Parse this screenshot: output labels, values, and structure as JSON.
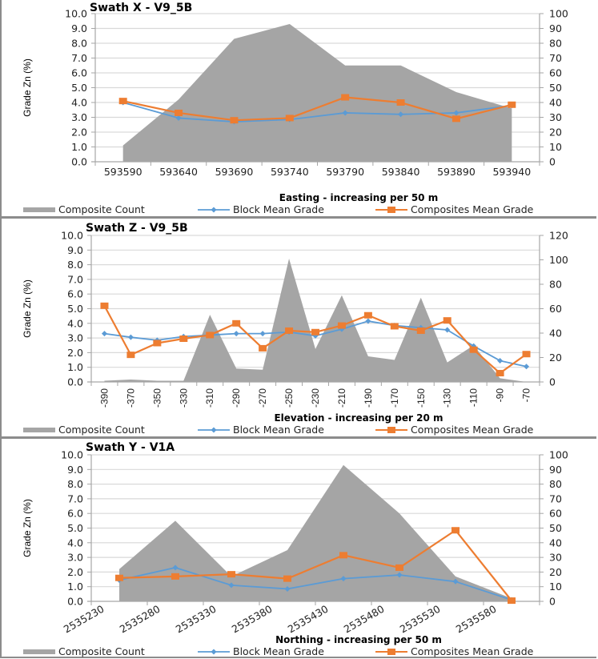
{
  "colors": {
    "count_fill": "#a5a5a5",
    "block": "#5b9bd5",
    "composites": "#ed7d31",
    "grid": "#d9d9d9",
    "axis": "#a6a6a6"
  },
  "legend": {
    "count": "Composite Count",
    "block": "Block Mean Grade",
    "composites": "Composites Mean Grade"
  },
  "chart_data": [
    {
      "type": "line",
      "combo": "area + line",
      "title": "Swath X - V9_5B",
      "xlabel": "Easting - increasing per 50 m",
      "ylabel": "Grade Zn (%)",
      "ylim": [
        0,
        10
      ],
      "y_ticks": [
        "0.0",
        "1.0",
        "2.0",
        "3.0",
        "4.0",
        "5.0",
        "6.0",
        "7.0",
        "8.0",
        "9.0",
        "10.0"
      ],
      "y2lim": [
        0,
        100
      ],
      "y2_ticks": [
        "0",
        "10",
        "20",
        "30",
        "40",
        "50",
        "60",
        "70",
        "80",
        "90",
        "100"
      ],
      "categories": [
        "593590",
        "593640",
        "593690",
        "593740",
        "593790",
        "593840",
        "593890",
        "593940"
      ],
      "x_tick_rotation": "horizontal",
      "grid": true,
      "legend_position": "bottom",
      "series": [
        {
          "name": "Composite Count",
          "type": "area",
          "axis": "right",
          "values": [
            11,
            42,
            83,
            93,
            65,
            65,
            47,
            36
          ]
        },
        {
          "name": "Block Mean Grade",
          "type": "line",
          "marker": "diamond",
          "axis": "left",
          "values": [
            4.0,
            2.95,
            2.7,
            2.85,
            3.3,
            3.2,
            3.3,
            3.8
          ]
        },
        {
          "name": "Composites Mean Grade",
          "type": "line",
          "marker": "square",
          "axis": "left",
          "values": [
            4.1,
            3.3,
            2.8,
            2.95,
            4.35,
            4.0,
            2.9,
            3.85
          ]
        }
      ]
    },
    {
      "type": "line",
      "combo": "area + line",
      "title": "Swath Z - V9_5B",
      "xlabel": "Elevation - increasing per 20 m",
      "ylabel": "Grade Zn (%)",
      "ylim": [
        0,
        10
      ],
      "y_ticks": [
        "0.0",
        "1.0",
        "2.0",
        "3.0",
        "4.0",
        "5.0",
        "6.0",
        "7.0",
        "8.0",
        "9.0",
        "10.0"
      ],
      "y2lim": [
        0,
        120
      ],
      "y2_ticks": [
        "0",
        "20",
        "40",
        "60",
        "80",
        "100",
        "120"
      ],
      "categories": [
        "-390",
        "-370",
        "-350",
        "-330",
        "-310",
        "-290",
        "-270",
        "-250",
        "-230",
        "-210",
        "-190",
        "-170",
        "-150",
        "-130",
        "-110",
        "-90",
        "-70"
      ],
      "x_tick_rotation": "vertical",
      "grid": true,
      "legend_position": "bottom",
      "series": [
        {
          "name": "Composite Count",
          "type": "area",
          "axis": "right",
          "values": [
            1,
            2,
            1,
            1,
            55,
            11,
            10,
            101,
            27,
            71,
            21,
            18,
            69,
            16,
            30,
            3,
            0
          ]
        },
        {
          "name": "Block Mean Grade",
          "type": "line",
          "marker": "diamond",
          "axis": "left",
          "values": [
            3.3,
            3.05,
            2.85,
            3.1,
            3.2,
            3.3,
            3.3,
            3.4,
            3.15,
            3.6,
            4.15,
            3.85,
            3.7,
            3.55,
            2.45,
            1.45,
            1.05
          ]
        },
        {
          "name": "Composites Mean Grade",
          "type": "line",
          "marker": "square",
          "axis": "left",
          "values": [
            5.2,
            1.85,
            2.65,
            2.95,
            3.2,
            4.0,
            2.3,
            3.5,
            3.4,
            3.85,
            4.55,
            3.8,
            3.5,
            4.2,
            2.2,
            0.6,
            1.9
          ]
        }
      ]
    },
    {
      "type": "line",
      "combo": "area + line",
      "title": "Swath Y - V1A",
      "xlabel": "Northing - increasing per 50 m",
      "ylabel": "Grade Zn (%)",
      "ylim": [
        0,
        10
      ],
      "y_ticks": [
        "0.0",
        "1.0",
        "2.0",
        "3.0",
        "4.0",
        "5.0",
        "6.0",
        "7.0",
        "8.0",
        "9.0",
        "10.0"
      ],
      "y2lim": [
        0,
        100
      ],
      "y2_ticks": [
        "0",
        "10",
        "20",
        "30",
        "40",
        "50",
        "60",
        "70",
        "80",
        "90",
        "100"
      ],
      "categories": [
        "2535230",
        "2535280",
        "2535330",
        "2535380",
        "2535430",
        "2535480",
        "2535530",
        "2535580"
      ],
      "x_tick_rotation": "diagonal",
      "grid": true,
      "legend_position": "bottom",
      "series": [
        {
          "name": "Composite Count",
          "type": "area",
          "axis": "right",
          "values": [
            22,
            55,
            17,
            35,
            93,
            60,
            17,
            2
          ]
        },
        {
          "name": "Block Mean Grade",
          "type": "line",
          "marker": "diamond",
          "axis": "left",
          "values": [
            1.45,
            2.3,
            1.1,
            0.85,
            1.55,
            1.8,
            1.35,
            0.1
          ]
        },
        {
          "name": "Composites Mean Grade",
          "type": "line",
          "marker": "square",
          "axis": "left",
          "values": [
            1.6,
            1.7,
            1.85,
            1.55,
            3.15,
            2.3,
            4.85,
            0.05
          ]
        }
      ]
    }
  ]
}
